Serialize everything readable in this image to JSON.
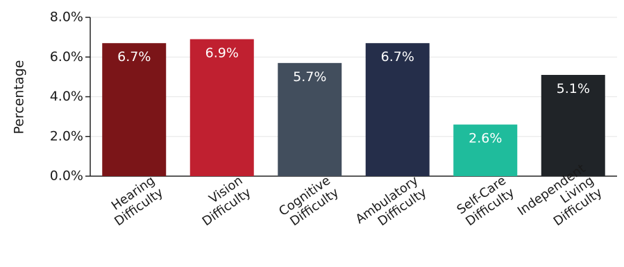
{
  "chart_data": {
    "type": "bar",
    "title": "",
    "xlabel": "",
    "ylabel": "Percentage",
    "ylim": [
      0,
      8
    ],
    "yticks": [
      "0.0%",
      "2.0%",
      "4.0%",
      "6.0%",
      "8.0%"
    ],
    "grid": true,
    "categories": [
      [
        "Hearing",
        "Difficulty"
      ],
      [
        "Vision",
        "Difficulty"
      ],
      [
        "Cognitive",
        "Difficulty"
      ],
      [
        "Ambulatory",
        "Difficulty"
      ],
      [
        "Self-Care",
        "Difficulty"
      ],
      [
        "Independent",
        "Living",
        "Difficulty"
      ]
    ],
    "values": [
      6.7,
      6.9,
      5.7,
      6.7,
      2.6,
      5.1
    ],
    "data_labels": [
      "6.7%",
      "6.9%",
      "5.7%",
      "6.7%",
      "2.6%",
      "5.1%"
    ],
    "colors": [
      "#7b1518",
      "#c02030",
      "#424e5d",
      "#252e4a",
      "#1fbc9c",
      "#202428"
    ]
  }
}
